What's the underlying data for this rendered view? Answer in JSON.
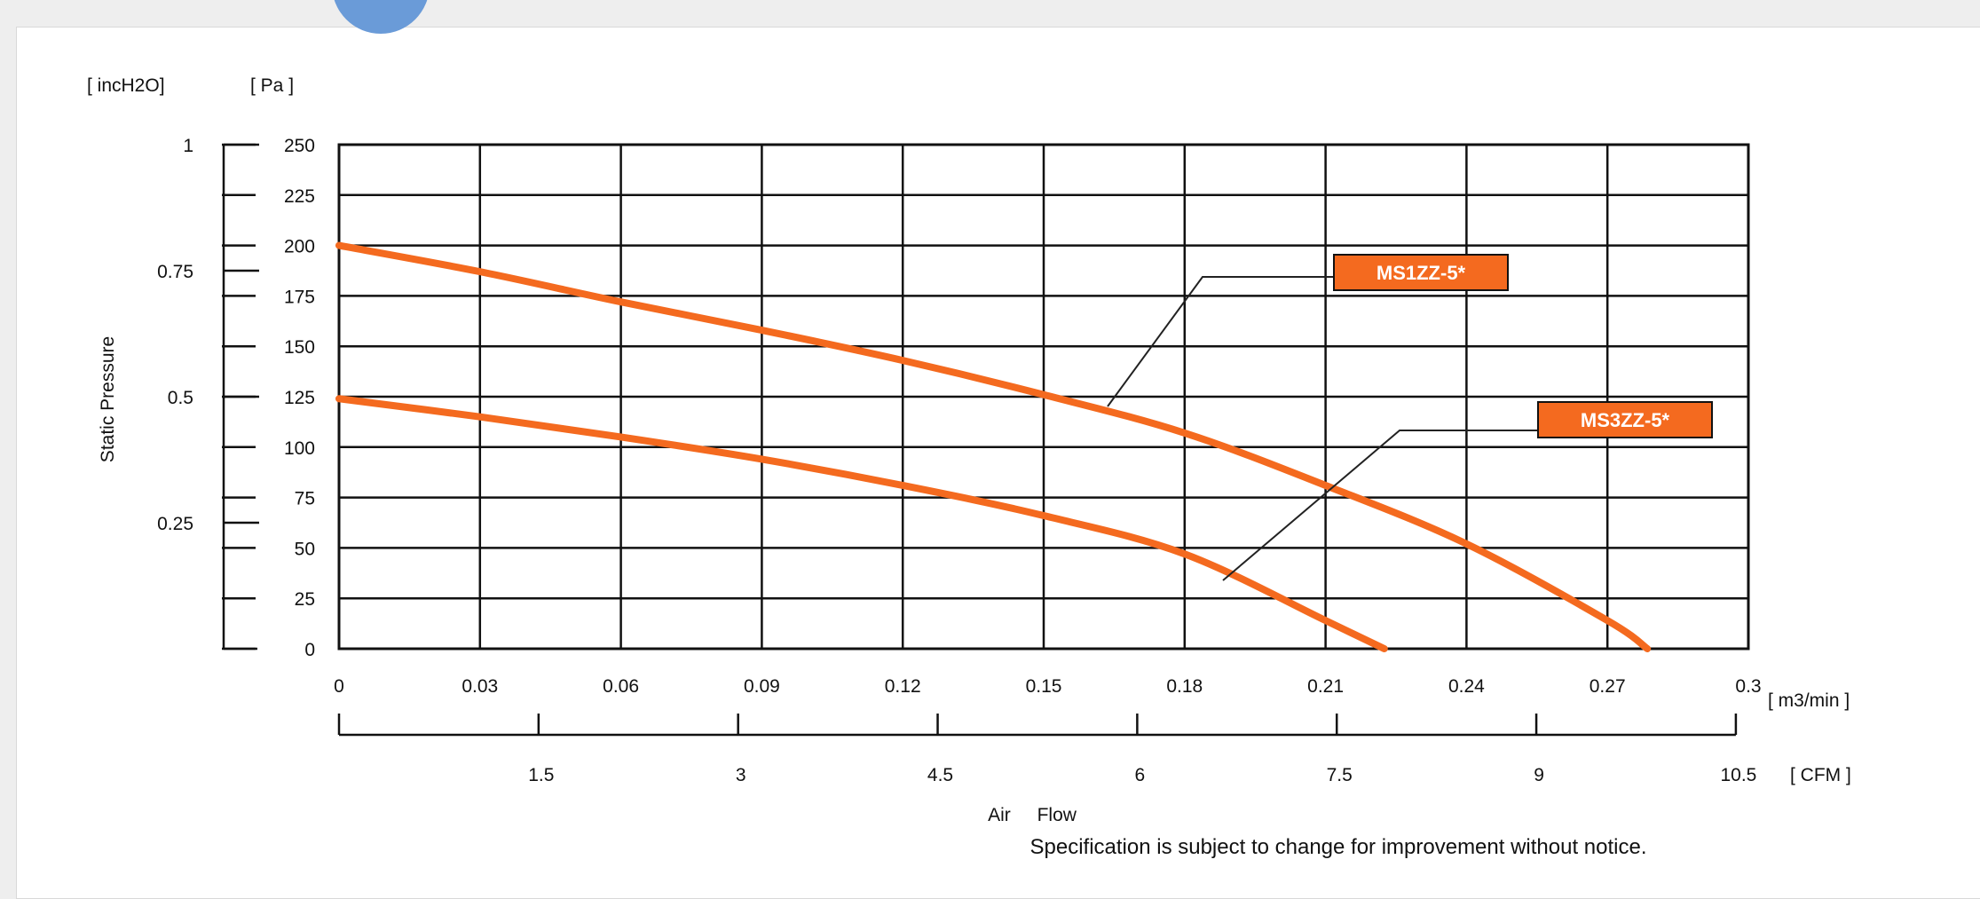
{
  "chart_data": {
    "type": "line",
    "ylabel": "Static Pressure",
    "xlabel": "Air Flow",
    "y_units_pa": "[ Pa ]",
    "y_units_inch": "[ incH2O]",
    "x_units_m3": "[ m3/min ]",
    "x_units_cfm": "[ CFM ]",
    "ylim": [
      0,
      250
    ],
    "xlim": [
      0,
      0.3
    ],
    "y_ticks_pa": [
      "0",
      "25",
      "50",
      "75",
      "100",
      "125",
      "150",
      "175",
      "200",
      "225",
      "250"
    ],
    "y_ticks_inch": [
      {
        "label": "1",
        "value": 1
      },
      {
        "label": "0.75",
        "value": 0.75
      },
      {
        "label": "0.5",
        "value": 0.5
      },
      {
        "label": "0.25",
        "value": 0.25
      }
    ],
    "x_ticks_m3": [
      "0",
      "0.03",
      "0.06",
      "0.09",
      "0.12",
      "0.15",
      "0.18",
      "0.21",
      "0.24",
      "0.27",
      "0.3"
    ],
    "x_ticks_cfm": [
      {
        "label": "1.5",
        "value": 1.5
      },
      {
        "label": "3",
        "value": 3
      },
      {
        "label": "4.5",
        "value": 4.5
      },
      {
        "label": "6",
        "value": 6
      },
      {
        "label": "7.5",
        "value": 7.5
      },
      {
        "label": "9",
        "value": 9
      },
      {
        "label": "10.5",
        "value": 10.5
      }
    ],
    "grid": true,
    "series": [
      {
        "name": "MS1ZZ-5*",
        "color": "#f46a1f",
        "x": [
          0,
          0.03,
          0.06,
          0.09,
          0.12,
          0.15,
          0.18,
          0.21,
          0.24,
          0.27,
          0.2785
        ],
        "y": [
          200,
          187,
          172,
          158,
          143,
          126,
          107,
          81,
          52,
          14,
          0
        ]
      },
      {
        "name": "MS3ZZ-5*",
        "color": "#f46a1f",
        "x": [
          0,
          0.03,
          0.06,
          0.09,
          0.12,
          0.15,
          0.18,
          0.21,
          0.2225
        ],
        "y": [
          124,
          115,
          105,
          94,
          81,
          66,
          47,
          14,
          0
        ]
      }
    ]
  },
  "footnote": "Specification is subject to change for improvement without notice.",
  "colors": {
    "curve": "#f46a1f",
    "label_bg": "#f46a1f",
    "label_text": "#ffffff",
    "grid": "#111111"
  }
}
